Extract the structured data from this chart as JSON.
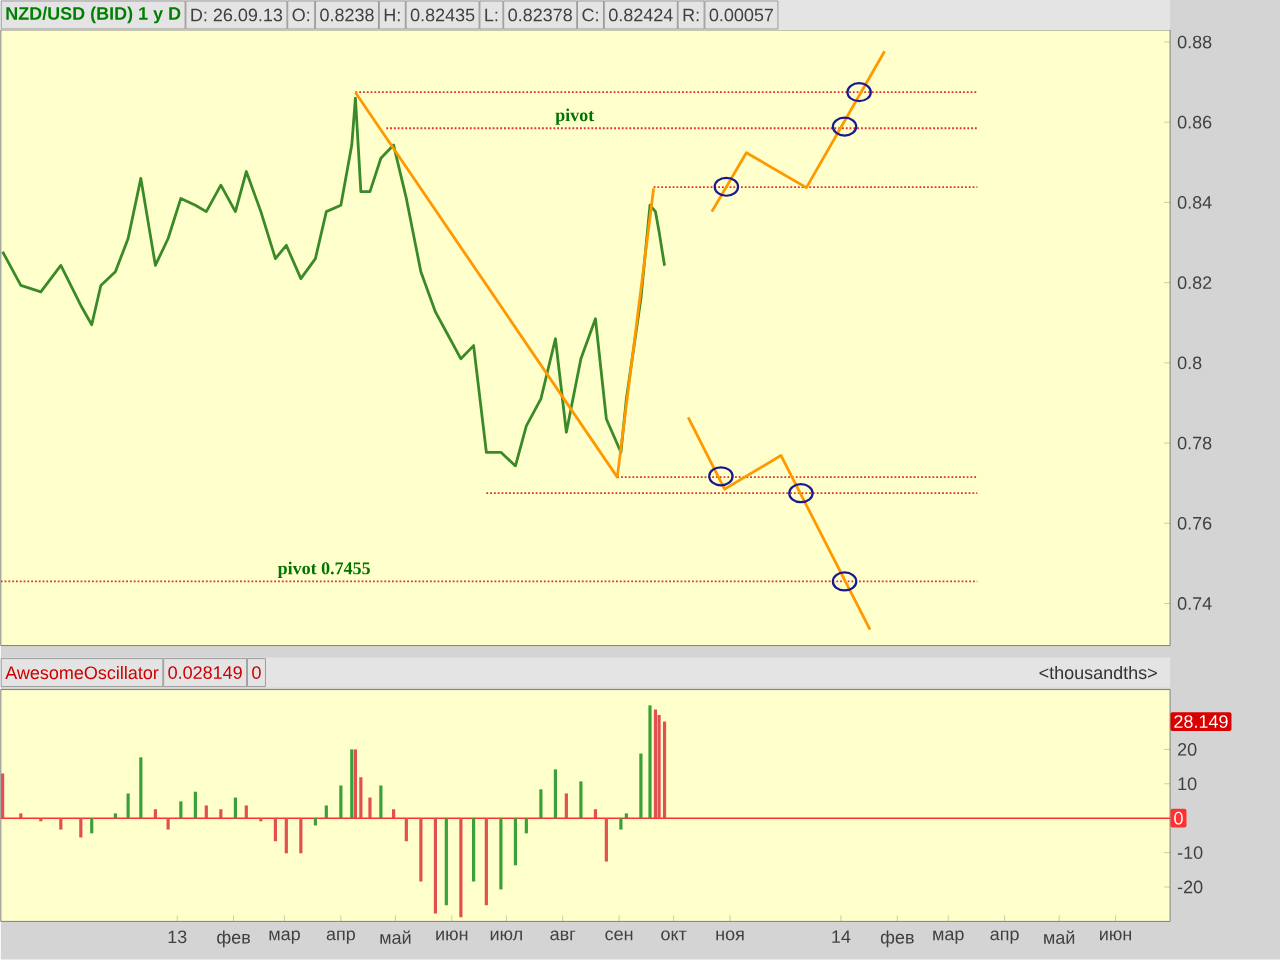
{
  "chart_data": [
    {
      "type": "line",
      "xlim": [
        "2012-09-26",
        "2014-07-01"
      ],
      "ylim": [
        0.7295,
        0.883
      ],
      "yticks": [
        0.74,
        0.76,
        0.78,
        0.8,
        0.82,
        0.84,
        0.86,
        0.88
      ],
      "tick_labels": "y",
      "annotations": [
        "NZD/USD (BID) 1 y D",
        "D: 26.09.13",
        "O:",
        "0.8238",
        "H:",
        "0.82435",
        "L:",
        "0.82378",
        "C:",
        "0.82424",
        "R:",
        "0.00057"
      ],
      "series": [
        {
          "type": "line",
          "color": "#3a8a2a",
          "marker": "none",
          "x": [
            "2012-09-27",
            "2012-10-07",
            "2012-10-18",
            "2012-10-29",
            "2012-11-09",
            "2012-11-15",
            "2012-11-20",
            "2012-11-28",
            "2012-12-05",
            "2012-12-12",
            "2012-12-20",
            "2012-12-27",
            "2013-01-03",
            "2013-01-11",
            "2013-01-17",
            "2013-01-25",
            "2013-02-02",
            "2013-02-08",
            "2013-02-16",
            "2013-02-24",
            "2013-03-02",
            "2013-03-10",
            "2013-03-18",
            "2013-03-24",
            "2013-04-01",
            "2013-04-07",
            "2013-04-09",
            "2013-04-12",
            "2013-04-17",
            "2013-04-23",
            "2013-04-30",
            "2013-05-07",
            "2013-05-15",
            "2013-05-23",
            "2013-05-29",
            "2013-06-06",
            "2013-06-13",
            "2013-06-20",
            "2013-06-28",
            "2013-07-06",
            "2013-07-12",
            "2013-07-20",
            "2013-07-28",
            "2013-08-03",
            "2013-08-11",
            "2013-08-19",
            "2013-08-25",
            "2013-09-02",
            "2013-09-05",
            "2013-09-13",
            "2013-09-18",
            "2013-09-21",
            "2013-09-23",
            "2013-09-26"
          ],
          "values": [
            0.8277,
            0.8193,
            0.8177,
            0.8243,
            0.8143,
            0.8095,
            0.8193,
            0.8227,
            0.831,
            0.846,
            0.8243,
            0.831,
            0.841,
            0.8393,
            0.8377,
            0.8443,
            0.8377,
            0.8477,
            0.8377,
            0.826,
            0.8293,
            0.821,
            0.826,
            0.8377,
            0.8393,
            0.8543,
            0.866,
            0.8427,
            0.8427,
            0.851,
            0.8543,
            0.841,
            0.8227,
            0.8127,
            0.8077,
            0.801,
            0.8043,
            0.7777,
            0.7777,
            0.7743,
            0.7843,
            0.791,
            0.806,
            0.7827,
            0.801,
            0.811,
            0.786,
            0.7777,
            0.791,
            0.816,
            0.8393,
            0.8377,
            0.8327,
            0.8242
          ]
        },
        {
          "type": "line",
          "color": "#e03030",
          "line_style": "dotted",
          "x": [
            "2013-04-09",
            "2014-03-17"
          ],
          "values": [
            0.8675,
            0.8675
          ]
        },
        {
          "type": "line",
          "name": "pivot",
          "color": "#e03030",
          "line_style": "dotted",
          "x": [
            "2013-04-26",
            "2014-03-17"
          ],
          "values": [
            0.8585,
            0.8585
          ]
        },
        {
          "type": "line",
          "color": "#e03030",
          "line_style": "dotted",
          "x": [
            "2013-09-20",
            "2014-03-17"
          ],
          "values": [
            0.8438,
            0.8438
          ]
        },
        {
          "type": "line",
          "color": "#e03030",
          "line_style": "dotted",
          "x": [
            "2013-08-31",
            "2014-03-17"
          ],
          "values": [
            0.7715,
            0.7715
          ]
        },
        {
          "type": "line",
          "color": "#e03030",
          "line_style": "dotted",
          "x": [
            "2013-06-20",
            "2014-03-17"
          ],
          "values": [
            0.7675,
            0.7675
          ]
        },
        {
          "type": "line",
          "name": "pivot 0.7455",
          "color": "#e03030",
          "line_style": "dotted",
          "x": [
            "2012-09-26",
            "2014-03-17"
          ],
          "values": [
            0.7455,
            0.7455
          ]
        },
        {
          "type": "line",
          "color": "#ff9900",
          "line_style": "solid",
          "x": [
            "2013-04-09",
            "2013-08-31",
            "2013-09-20"
          ],
          "values": [
            0.8674,
            0.7715,
            0.8435
          ]
        },
        {
          "type": "line",
          "color": "#ff9900",
          "line_style": "solid",
          "x": [
            "2013-10-22",
            "2013-11-10",
            "2013-12-13",
            "2014-01-25"
          ],
          "values": [
            0.8377,
            0.8524,
            0.8437,
            0.8777
          ]
        },
        {
          "type": "line",
          "color": "#ff9900",
          "line_style": "solid",
          "x": [
            "2013-10-09",
            "2013-10-29",
            "2013-11-29",
            "2014-01-17"
          ],
          "values": [
            0.7864,
            0.7685,
            0.7769,
            0.7335
          ]
        },
        {
          "type": "scatter",
          "color": "#1a1a90",
          "marker": "circle",
          "x": [
            "2013-10-30",
            "2014-01-03",
            "2014-01-11",
            "2013-10-27",
            "2013-12-10",
            "2014-01-03"
          ],
          "values": [
            0.8439,
            0.8589,
            0.8675,
            0.7717,
            0.7675,
            0.7455
          ]
        }
      ]
    },
    {
      "type": "bar",
      "xlim": [
        "2012-09-26",
        "2014-07-01"
      ],
      "ylim": [
        -30,
        37.4
      ],
      "yticks": [
        -20,
        -10,
        10,
        20
      ],
      "xticks": [
        {
          "value": "2013-01-01",
          "label": "13"
        },
        {
          "value": "2013-02-01",
          "label": "фев"
        },
        {
          "value": "2013-03-01",
          "label": "мар"
        },
        {
          "value": "2013-04-01",
          "label": "апр"
        },
        {
          "value": "2013-05-01",
          "label": "май"
        },
        {
          "value": "2013-06-01",
          "label": "июн"
        },
        {
          "value": "2013-07-01",
          "label": "июл"
        },
        {
          "value": "2013-08-01",
          "label": "авг"
        },
        {
          "value": "2013-09-01",
          "label": "сен"
        },
        {
          "value": "2013-10-01",
          "label": "окт"
        },
        {
          "value": "2013-11-01",
          "label": "ноя"
        },
        {
          "value": "2014-01-01",
          "label": "14"
        },
        {
          "value": "2014-02-01",
          "label": "фев"
        },
        {
          "value": "2014-03-01",
          "label": "мар"
        },
        {
          "value": "2014-04-01",
          "label": "апр"
        },
        {
          "value": "2014-05-01",
          "label": "май"
        },
        {
          "value": "2014-06-01",
          "label": "июн"
        }
      ],
      "annotations": [
        "AwesomeOscillator",
        "0.028149",
        "0",
        "<thousandths>",
        "28.149"
      ],
      "ref_lines": [
        {
          "axis": "y",
          "value": 0,
          "label": "0",
          "color": "#ff3030"
        }
      ],
      "x": [
        "2012-09-27",
        "2012-10-07",
        "2012-10-18",
        "2012-10-29",
        "2012-11-09",
        "2012-11-15",
        "2012-11-20",
        "2012-11-28",
        "2012-12-05",
        "2012-12-12",
        "2012-12-20",
        "2012-12-27",
        "2013-01-03",
        "2013-01-11",
        "2013-01-17",
        "2013-01-25",
        "2013-02-02",
        "2013-02-08",
        "2013-02-16",
        "2013-02-24",
        "2013-03-02",
        "2013-03-10",
        "2013-03-18",
        "2013-03-24",
        "2013-04-01",
        "2013-04-07",
        "2013-04-09",
        "2013-04-12",
        "2013-04-17",
        "2013-04-23",
        "2013-04-30",
        "2013-05-07",
        "2013-05-15",
        "2013-05-23",
        "2013-05-29",
        "2013-06-06",
        "2013-06-13",
        "2013-06-20",
        "2013-06-28",
        "2013-07-06",
        "2013-07-12",
        "2013-07-20",
        "2013-07-28",
        "2013-08-03",
        "2013-08-11",
        "2013-08-19",
        "2013-08-25",
        "2013-09-02",
        "2013-09-05",
        "2013-09-13",
        "2013-09-18",
        "2013-09-21",
        "2013-09-23",
        "2013-09-26"
      ],
      "values": [
        13.0,
        1.4,
        -0.9,
        -3.3,
        -5.6,
        -4.4,
        0,
        1.4,
        7.2,
        17.7,
        2.6,
        -3.3,
        4.9,
        7.7,
        3.7,
        2.6,
        6.0,
        3.7,
        -0.9,
        -6.7,
        -10.2,
        -10.2,
        -2.1,
        3.7,
        9.5,
        20.0,
        20.0,
        11.9,
        6.0,
        9.5,
        2.6,
        -6.7,
        -18.4,
        -27.7,
        -25.3,
        -28.8,
        -18.4,
        -25.3,
        -20.7,
        -13.7,
        -4.4,
        8.4,
        14.2,
        7.2,
        10.7,
        2.6,
        -12.6,
        -3.3,
        1.4,
        18.8,
        32.8,
        31.6,
        30.0,
        28.1
      ],
      "colors": [
        "#e05050",
        "#e05050",
        "#e05050",
        "#e05050",
        "#e05050",
        "#3aa03a",
        "#3aa03a",
        "#3aa03a",
        "#3aa03a",
        "#3aa03a",
        "#e05050",
        "#e05050",
        "#3aa03a",
        "#3aa03a",
        "#e05050",
        "#e05050",
        "#3aa03a",
        "#e05050",
        "#e05050",
        "#e05050",
        "#e05050",
        "#e05050",
        "#3aa03a",
        "#3aa03a",
        "#3aa03a",
        "#3aa03a",
        "#e05050",
        "#e05050",
        "#e05050",
        "#3aa03a",
        "#e05050",
        "#e05050",
        "#e05050",
        "#e05050",
        "#3aa03a",
        "#e05050",
        "#3aa03a",
        "#e05050",
        "#3aa03a",
        "#3aa03a",
        "#3aa03a",
        "#3aa03a",
        "#3aa03a",
        "#e05050",
        "#3aa03a",
        "#e05050",
        "#e05050",
        "#3aa03a",
        "#3aa03a",
        "#3aa03a",
        "#3aa03a",
        "#e05050",
        "#e05050",
        "#e05050"
      ]
    }
  ]
}
